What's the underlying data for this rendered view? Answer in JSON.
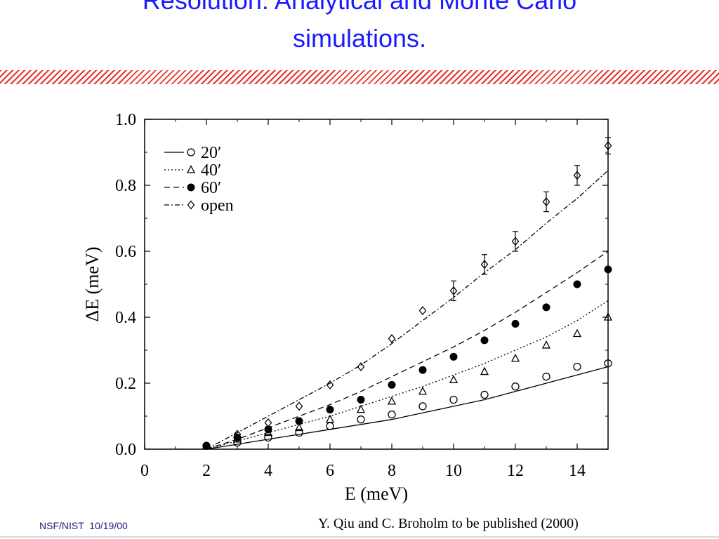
{
  "slide": {
    "title_lines": [
      "Resolution: Analytical and Monte Carlo",
      "simulations."
    ],
    "footer_left": "NSF/NIST  10/19/00",
    "footer_credit": "Y. Qiu and C. Broholm to be published (2000)",
    "accent_color": "#e8302a",
    "title_color": "#1a1aff"
  },
  "chart_data": {
    "type": "scatter",
    "title": "",
    "xlabel": "E (meV)",
    "ylabel": "ΔE (meV)",
    "xlim": [
      0,
      15
    ],
    "ylim": [
      0,
      1.0
    ],
    "x_ticks": [
      0,
      2,
      4,
      6,
      8,
      10,
      12,
      14
    ],
    "x_tick_labels": [
      "0",
      "2",
      "4",
      "6",
      "8",
      "10",
      "12",
      "14"
    ],
    "y_ticks": [
      0.0,
      0.2,
      0.4,
      0.6,
      0.8,
      1.0
    ],
    "y_tick_labels": [
      "0.0",
      "0.2",
      "0.4",
      "0.6",
      "0.8",
      "1.0"
    ],
    "grid": false,
    "legend_position": "top-left",
    "series": [
      {
        "name": "20′",
        "marker": "open-circle",
        "line_style": "solid",
        "x": [
          2,
          3,
          4,
          5,
          6,
          7,
          8,
          9,
          10,
          11,
          12,
          13,
          14,
          15
        ],
        "y": [
          0.01,
          0.02,
          0.035,
          0.05,
          0.07,
          0.09,
          0.105,
          0.13,
          0.15,
          0.165,
          0.19,
          0.22,
          0.25,
          0.26
        ],
        "curve": {
          "x": [
            2,
            3,
            4,
            5,
            6,
            7,
            8,
            9,
            10,
            11,
            12,
            13,
            14,
            15
          ],
          "y": [
            0.0,
            0.015,
            0.03,
            0.045,
            0.06,
            0.075,
            0.09,
            0.11,
            0.13,
            0.15,
            0.175,
            0.2,
            0.225,
            0.25
          ]
        }
      },
      {
        "name": "40′",
        "marker": "open-triangle",
        "line_style": "dotted",
        "x": [
          2,
          3,
          4,
          5,
          6,
          7,
          8,
          9,
          10,
          11,
          12,
          13,
          14,
          15
        ],
        "y": [
          0.01,
          0.03,
          0.05,
          0.065,
          0.09,
          0.12,
          0.145,
          0.175,
          0.21,
          0.235,
          0.275,
          0.315,
          0.35,
          0.4
        ],
        "curve": {
          "x": [
            2,
            3,
            4,
            5,
            6,
            7,
            8,
            9,
            10,
            11,
            12,
            13,
            14,
            15
          ],
          "y": [
            0.0,
            0.025,
            0.05,
            0.075,
            0.1,
            0.13,
            0.16,
            0.19,
            0.225,
            0.26,
            0.3,
            0.34,
            0.39,
            0.45
          ]
        }
      },
      {
        "name": "60′",
        "marker": "filled-circle",
        "line_style": "dashed",
        "x": [
          2,
          3,
          4,
          5,
          6,
          7,
          8,
          9,
          10,
          11,
          12,
          13,
          14,
          15
        ],
        "y": [
          0.01,
          0.035,
          0.06,
          0.085,
          0.12,
          0.15,
          0.195,
          0.24,
          0.28,
          0.33,
          0.38,
          0.43,
          0.5,
          0.545
        ],
        "curve": {
          "x": [
            2,
            3,
            4,
            5,
            6,
            7,
            8,
            9,
            10,
            11,
            12,
            13,
            14,
            15
          ],
          "y": [
            0.0,
            0.03,
            0.065,
            0.1,
            0.135,
            0.175,
            0.22,
            0.265,
            0.31,
            0.36,
            0.415,
            0.475,
            0.535,
            0.6
          ]
        }
      },
      {
        "name": "open",
        "marker": "open-diamond",
        "line_style": "dash-dot",
        "x": [
          3,
          4,
          5,
          6,
          7,
          8,
          9,
          10,
          11,
          12,
          13,
          14,
          15
        ],
        "y": [
          0.045,
          0.08,
          0.13,
          0.195,
          0.25,
          0.335,
          0.42,
          0.48,
          0.56,
          0.63,
          0.75,
          0.83,
          0.92
        ],
        "errors": [
          0.005,
          0.005,
          0.005,
          0.005,
          0.005,
          0.005,
          0.01,
          0.03,
          0.03,
          0.03,
          0.03,
          0.03,
          0.025
        ],
        "curve": {
          "x": [
            2,
            3,
            4,
            5,
            6,
            7,
            8,
            9,
            10,
            11,
            12,
            13,
            14,
            15
          ],
          "y": [
            0.0,
            0.05,
            0.1,
            0.15,
            0.2,
            0.255,
            0.32,
            0.39,
            0.46,
            0.535,
            0.605,
            0.685,
            0.76,
            0.845
          ]
        }
      }
    ]
  }
}
